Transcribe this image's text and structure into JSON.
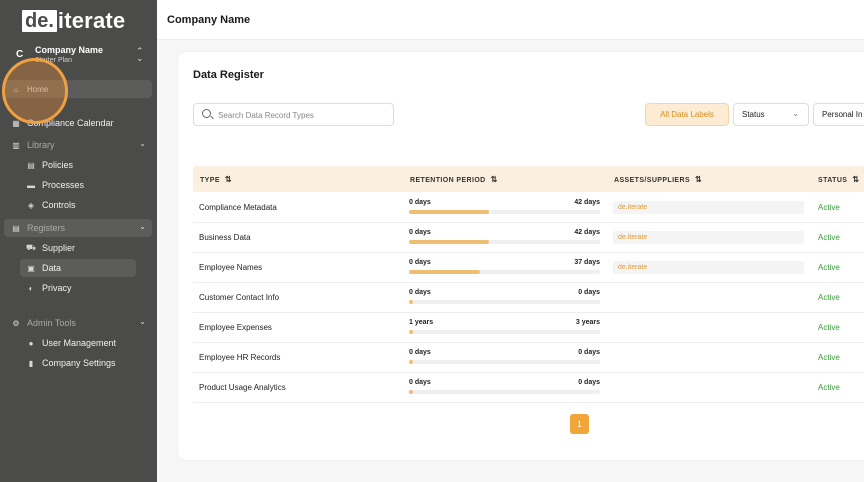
{
  "brand": {
    "logo_box": "de.",
    "logo_rest": "iterate"
  },
  "company": {
    "initial": "C",
    "name": "Company Name",
    "plan": "Starter Plan"
  },
  "nav": {
    "home": "Home",
    "compliance_calendar": "Compliance Calendar",
    "library": "Library",
    "policies": "Policies",
    "processes": "Processes",
    "controls": "Controls",
    "registers": "Registers",
    "supplier": "Supplier",
    "data": "Data",
    "privacy": "Privacy",
    "admin_tools": "Admin Tools",
    "user_management": "User Management",
    "company_settings": "Company Settings"
  },
  "header": {
    "title": "Company Name"
  },
  "register": {
    "title": "Data Register",
    "search_placeholder": "Search Data Record Types",
    "filters": {
      "labels": "All Data Labels",
      "status": "Status",
      "personal": "Personal In"
    },
    "columns": {
      "type": "TYPE",
      "retention": "RETENTION PERIOD",
      "assets": "ASSETS/SUPPLIERS",
      "status": "STATUS"
    },
    "rows": [
      {
        "type": "Compliance Metadata",
        "min": "0 days",
        "max": "42 days",
        "fill": 0.42,
        "supplier": "de.iterate",
        "status": "Active"
      },
      {
        "type": "Business Data",
        "min": "0 days",
        "max": "42 days",
        "fill": 0.42,
        "supplier": "de.iterate",
        "status": "Active"
      },
      {
        "type": "Employee Names",
        "min": "0 days",
        "max": "37 days",
        "fill": 0.37,
        "supplier": "de.iterate",
        "status": "Active"
      },
      {
        "type": "Customer Contact Info",
        "min": "0 days",
        "max": "0 days",
        "fill": 0.015,
        "supplier": "",
        "status": "Active"
      },
      {
        "type": "Employee Expenses",
        "min": "1 years",
        "max": "3 years",
        "fill": 0.015,
        "supplier": "",
        "status": "Active"
      },
      {
        "type": "Employee HR Records",
        "min": "0 days",
        "max": "0 days",
        "fill": 0.015,
        "supplier": "",
        "status": "Active"
      },
      {
        "type": "Product Usage Analytics",
        "min": "0 days",
        "max": "0 days",
        "fill": 0.015,
        "supplier": "",
        "status": "Active"
      }
    ],
    "page": "1"
  },
  "colors": {
    "accent": "#f1a639",
    "sidebar": "#4b4b49",
    "active_status": "#3a9a3a"
  }
}
